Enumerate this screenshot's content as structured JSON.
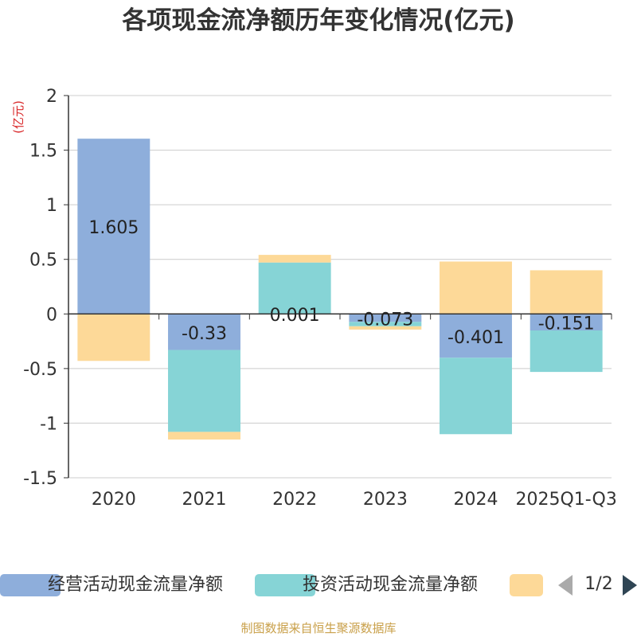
{
  "chart_data": {
    "type": "bar",
    "stacked": true,
    "title": "各项现金流净额历年变化情况(亿元)",
    "ylabel": "(亿元)",
    "xlabel": "",
    "ylim": [
      -1.5,
      2
    ],
    "yticks": [
      "2",
      "1.5",
      "1",
      "0.5",
      "0",
      "-0.5",
      "-1",
      "-1.5"
    ],
    "ytick_values": [
      2,
      1.5,
      1,
      0.5,
      0,
      -0.5,
      -1,
      -1.5
    ],
    "categories": [
      "2020",
      "2021",
      "2022",
      "2023",
      "2024",
      "2025Q1-Q3"
    ],
    "series": [
      {
        "name": "经营活动现金流量净额",
        "color": "#8eaedb",
        "values": [
          1.605,
          -0.33,
          0.001,
          -0.073,
          -0.401,
          -0.151
        ],
        "labels": [
          "1.605",
          "-0.33",
          "0.001",
          "-0.073",
          "-0.401",
          "-0.151"
        ]
      },
      {
        "name": "投资活动现金流量净额",
        "color": "#86d4d6",
        "values": [
          0,
          -0.75,
          0.47,
          -0.04,
          -0.7,
          -0.38
        ]
      },
      {
        "name": "",
        "color": "#fdd998",
        "values": [
          -0.43,
          -0.07,
          0.07,
          -0.03,
          0.48,
          0.4
        ]
      }
    ],
    "legend_position": "bottom",
    "grid": true
  },
  "legend": {
    "page": "1/2",
    "prev_icon": "triangle-left-icon",
    "next_icon": "triangle-right-icon"
  },
  "source": "制图数据来自恒生聚源数据库",
  "colors": {
    "axis": "#333333",
    "grid": "#cccccc",
    "ylabel": "#d9282a"
  }
}
